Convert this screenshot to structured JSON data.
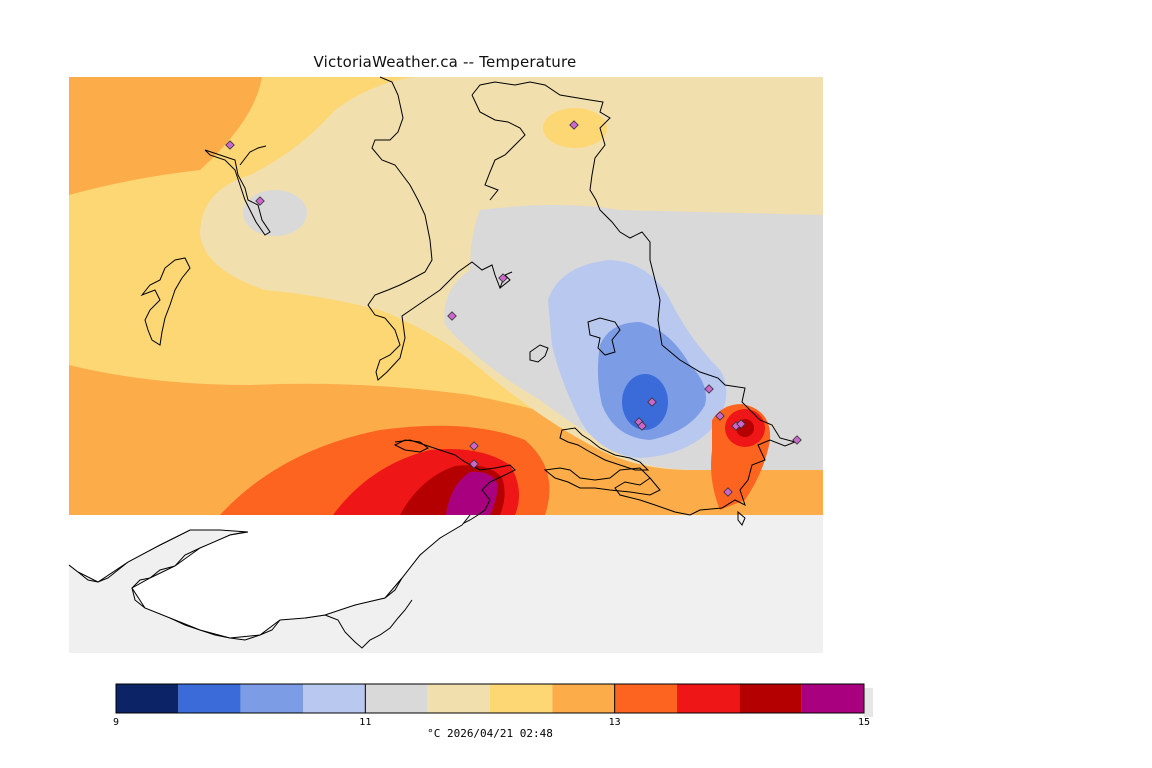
{
  "title": "VictoriaWeather.ca -- Temperature",
  "legend": {
    "unit": "°C",
    "timestamp": "2026/04/21 02:48",
    "caption": "°C  2026/04/21 02:48",
    "min": 9,
    "max": 15,
    "tick_labels": [
      "9",
      "11",
      "13",
      "15"
    ],
    "tick_values": [
      9,
      11,
      13,
      15
    ],
    "color_bins": [
      {
        "from": 9.0,
        "to": 9.5,
        "color": "#0c2466"
      },
      {
        "from": 9.5,
        "to": 10.0,
        "color": "#3a6bd8"
      },
      {
        "from": 10.0,
        "to": 10.5,
        "color": "#7d9ce6"
      },
      {
        "from": 10.5,
        "to": 11.0,
        "color": "#b9c8ef"
      },
      {
        "from": 11.0,
        "to": 11.5,
        "color": "#d9d9d9"
      },
      {
        "from": 11.5,
        "to": 12.0,
        "color": "#f1dfad"
      },
      {
        "from": 12.0,
        "to": 12.5,
        "color": "#fdd774"
      },
      {
        "from": 12.5,
        "to": 13.0,
        "color": "#fcad4a"
      },
      {
        "from": 13.0,
        "to": 13.5,
        "color": "#fc6420"
      },
      {
        "from": 13.5,
        "to": 14.0,
        "color": "#ee1616"
      },
      {
        "from": 14.0,
        "to": 14.5,
        "color": "#b50000"
      },
      {
        "from": 14.5,
        "to": 15.0,
        "color": "#a8007e"
      }
    ]
  },
  "colors": {
    "land_outline": "#000000",
    "water": "#f0f0f0",
    "station_marker": "#cc66cc"
  }
}
